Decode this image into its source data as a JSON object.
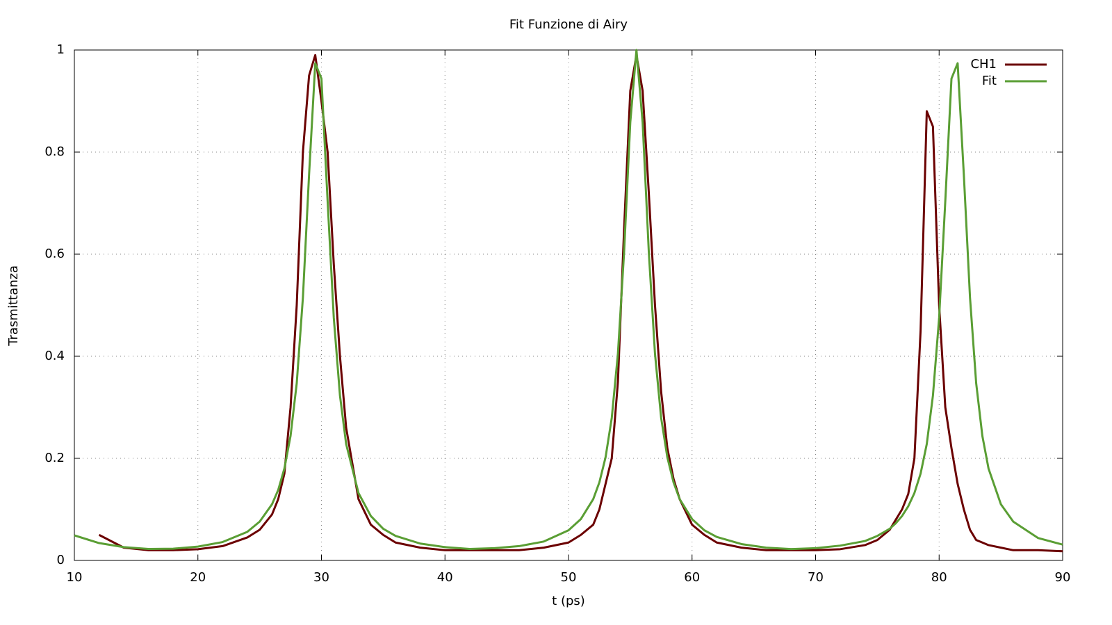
{
  "chart_data": {
    "type": "line",
    "title": "Fit Funzione di Airy",
    "x_label": "t (ps)",
    "y_label": "Trasmittanza",
    "x": [
      10,
      12,
      14,
      16,
      18,
      20,
      22,
      24,
      25,
      26,
      26.5,
      27,
      27.5,
      28,
      28.5,
      29,
      29.5,
      30,
      30.5,
      31,
      31.5,
      32,
      33,
      34,
      35,
      36,
      38,
      40,
      42,
      44,
      46,
      48,
      50,
      51,
      52,
      52.5,
      53,
      53.5,
      54,
      54.5,
      55,
      55.5,
      56,
      56.5,
      57,
      57.5,
      58,
      58.5,
      59,
      60,
      61,
      62,
      64,
      66,
      68,
      70,
      72,
      74,
      75,
      76,
      76.5,
      77,
      77.5,
      78,
      78.5,
      79,
      79.5,
      80,
      80.5,
      81,
      81.5,
      82,
      82.5,
      83,
      83.5,
      84,
      85,
      86,
      88,
      90
    ],
    "series": [
      {
        "name": "CH1",
        "color": "#6b0000",
        "values": [
          null,
          0.05,
          0.025,
          0.02,
          0.02,
          0.022,
          0.028,
          0.045,
          0.06,
          0.09,
          0.12,
          0.17,
          0.3,
          0.5,
          0.8,
          0.95,
          0.99,
          0.9,
          0.8,
          0.58,
          0.4,
          0.26,
          0.12,
          0.07,
          0.05,
          0.035,
          0.025,
          0.02,
          0.02,
          0.02,
          0.02,
          0.025,
          0.035,
          0.05,
          0.07,
          0.1,
          0.15,
          0.2,
          0.35,
          0.65,
          0.92,
          0.99,
          0.92,
          0.72,
          0.5,
          0.33,
          0.22,
          0.16,
          0.12,
          0.07,
          0.05,
          0.035,
          0.025,
          0.02,
          0.02,
          0.02,
          0.022,
          0.03,
          0.04,
          0.06,
          0.08,
          0.1,
          0.13,
          0.2,
          0.45,
          0.88,
          0.85,
          0.5,
          0.3,
          0.22,
          0.15,
          0.1,
          0.06,
          0.04,
          0.035,
          0.03,
          0.025,
          0.02,
          0.02,
          0.018
        ]
      },
      {
        "name": "Fit",
        "color": "#5a9e34",
        "values": [
          0.049,
          0.034,
          0.026,
          0.0225,
          0.023,
          0.027,
          0.036,
          0.056,
          0.076,
          0.11,
          0.138,
          0.18,
          0.244,
          0.347,
          0.515,
          0.756,
          0.974,
          0.944,
          0.704,
          0.475,
          0.323,
          0.228,
          0.132,
          0.087,
          0.062,
          0.048,
          0.033,
          0.026,
          0.0224,
          0.024,
          0.028,
          0.037,
          0.059,
          0.081,
          0.12,
          0.153,
          0.202,
          0.279,
          0.405,
          0.604,
          0.858,
          1,
          0.858,
          0.604,
          0.405,
          0.279,
          0.202,
          0.153,
          0.12,
          0.081,
          0.059,
          0.046,
          0.032,
          0.025,
          0.0222,
          0.024,
          0.029,
          0.038,
          0.048,
          0.062,
          0.073,
          0.087,
          0.106,
          0.132,
          0.17,
          0.228,
          0.323,
          0.475,
          0.704,
          0.944,
          0.974,
          0.756,
          0.515,
          0.347,
          0.244,
          0.18,
          0.11,
          0.076,
          0.044,
          0.031
        ]
      }
    ],
    "xlim": [
      10,
      90
    ],
    "ylim": [
      0,
      1
    ],
    "xticks": [
      10,
      20,
      30,
      40,
      50,
      60,
      70,
      80,
      90
    ],
    "yticks": [
      0,
      0.2,
      0.4,
      0.6,
      0.8,
      1
    ],
    "grid": true,
    "legend": "top-right"
  }
}
